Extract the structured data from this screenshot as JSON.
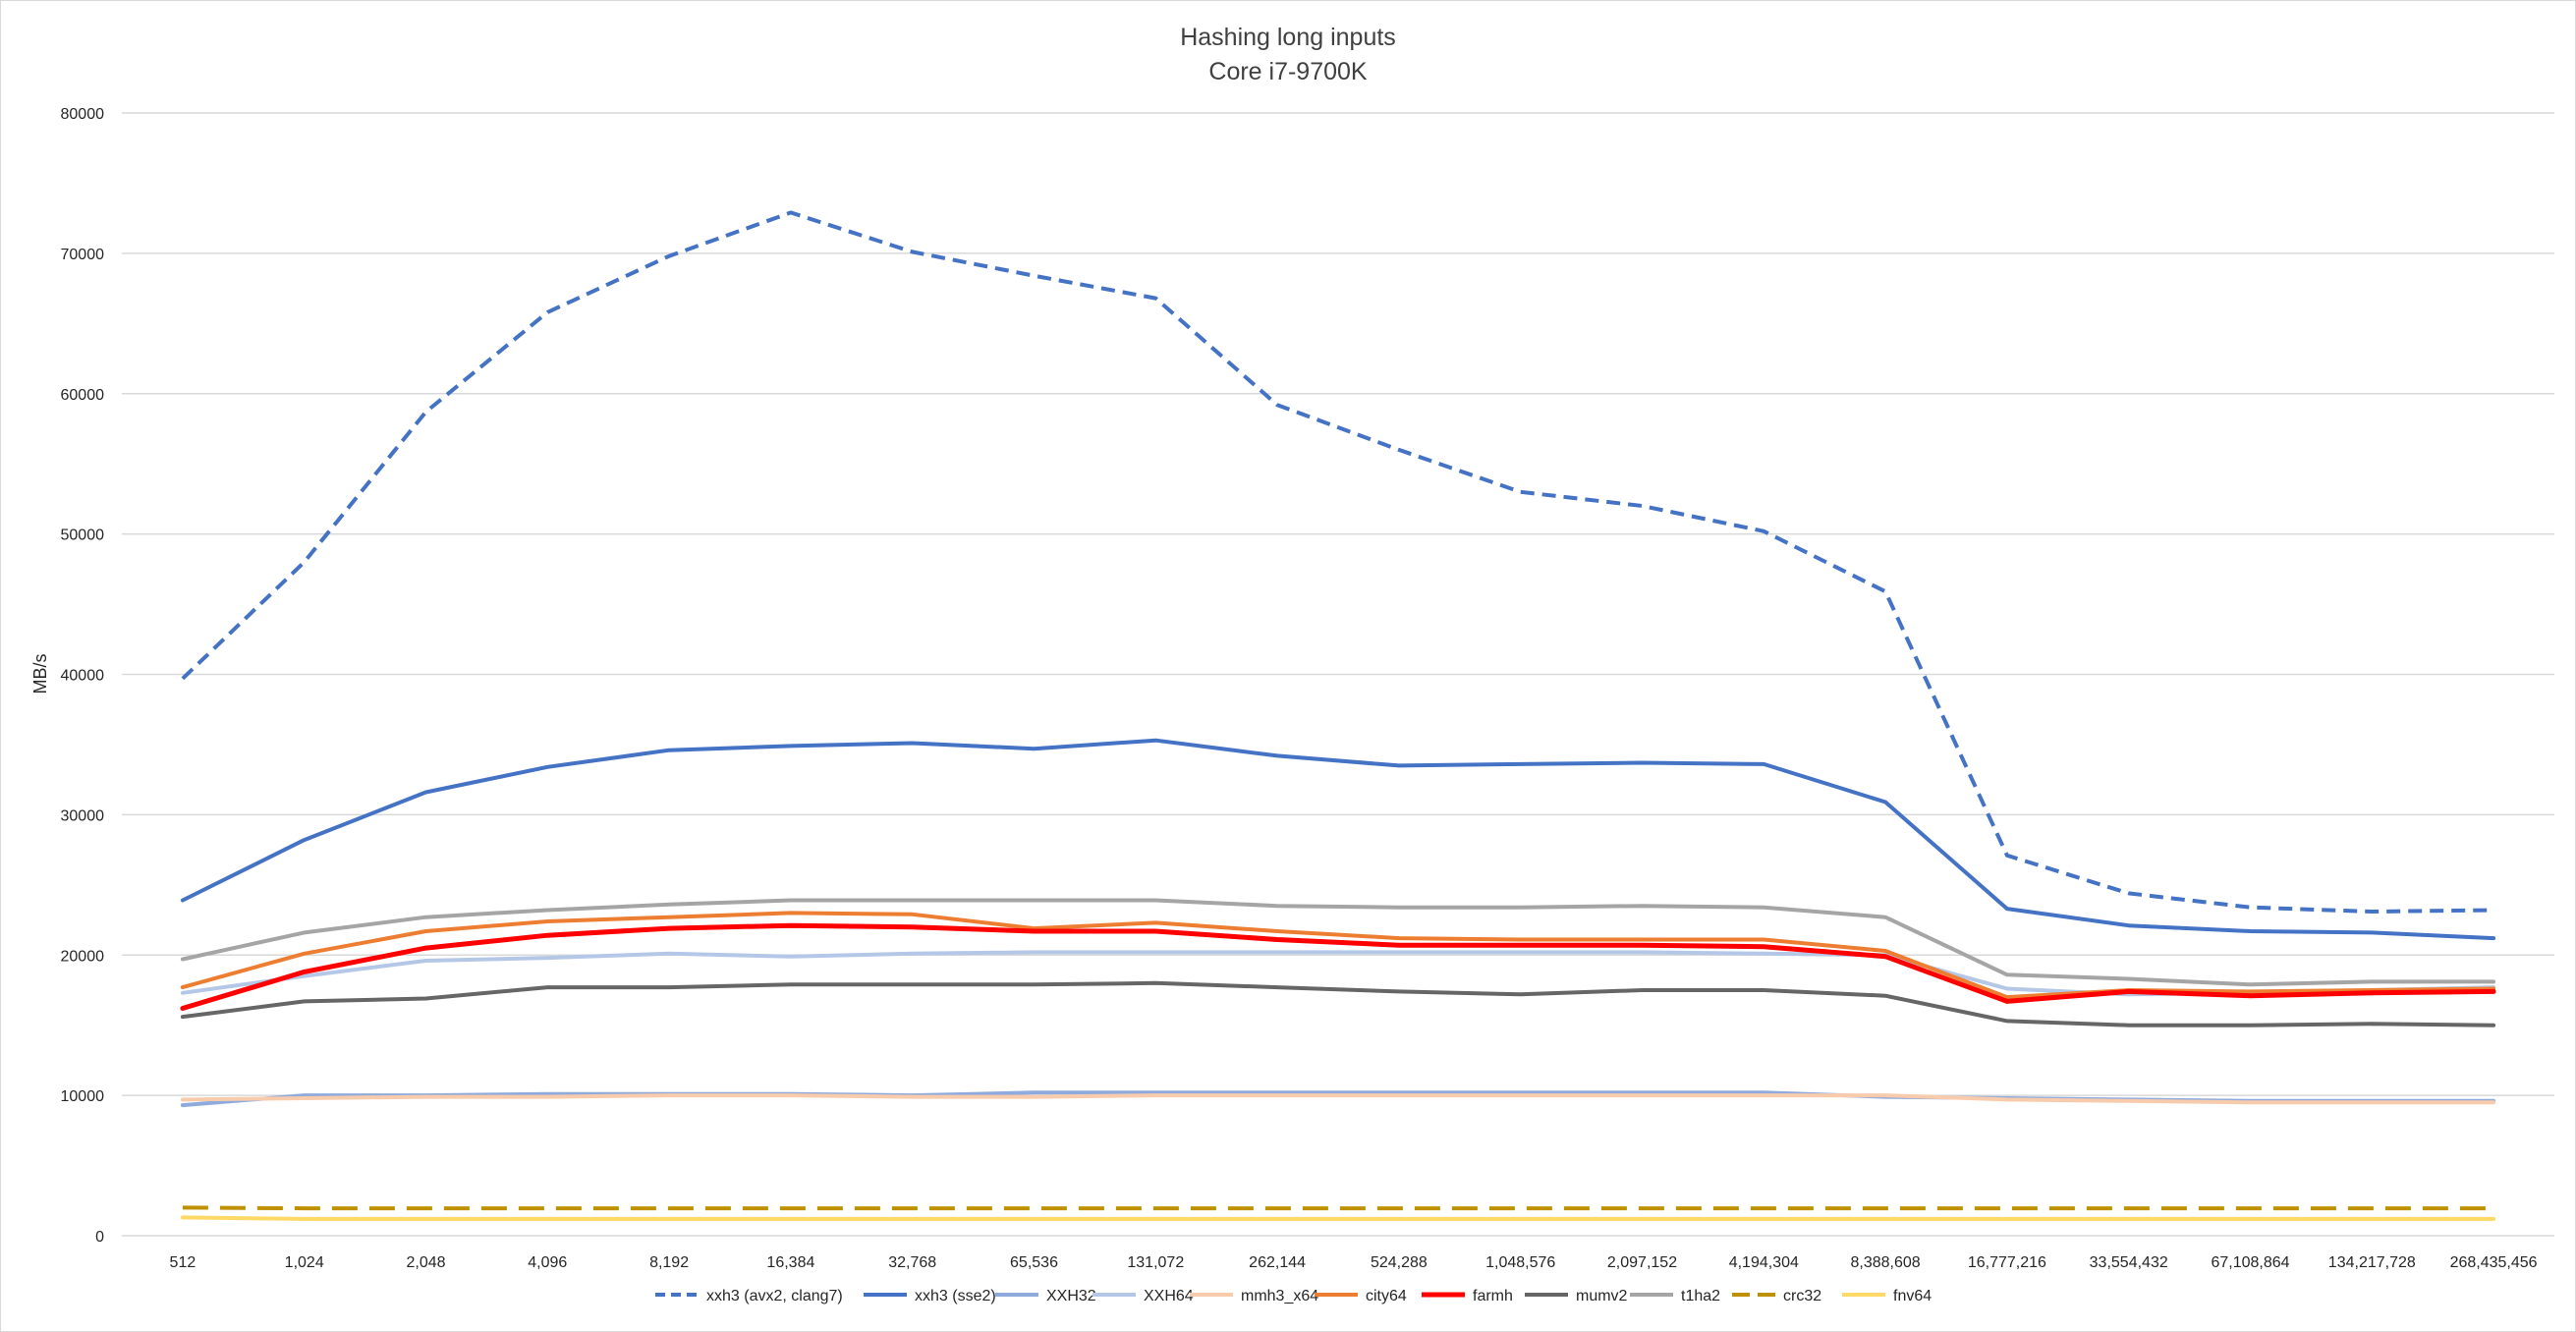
{
  "chart_data": {
    "type": "line",
    "title": "Hashing long inputs",
    "subtitle": "Core i7-9700K",
    "xlabel": "",
    "ylabel": "MB/s",
    "ylim": [
      0,
      80000
    ],
    "yticks": [
      "0",
      "10000",
      "20000",
      "30000",
      "40000",
      "50000",
      "60000",
      "70000",
      "80000"
    ],
    "grid": true,
    "legend_position": "bottom",
    "categories": [
      "512",
      "1,024",
      "2,048",
      "4,096",
      "8,192",
      "16,384",
      "32,768",
      "65,536",
      "131,072",
      "262,144",
      "524,288",
      "1,048,576",
      "2,097,152",
      "4,194,304",
      "8,388,608",
      "16,777,216",
      "33,554,432",
      "67,108,864",
      "134,217,728",
      "268,435,456"
    ],
    "series": [
      {
        "name": "xxh3 (avx2, clang7)",
        "color": "#4472c4",
        "dash": "dashed",
        "width": 4,
        "values": [
          39700,
          48000,
          58700,
          65800,
          69800,
          72900,
          70100,
          68400,
          66800,
          59200,
          56000,
          53000,
          52000,
          50200,
          45900,
          27100,
          24400,
          23400,
          23100,
          23200
        ]
      },
      {
        "name": "xxh3 (sse2)",
        "color": "#4472c4",
        "dash": "solid",
        "width": 4,
        "values": [
          23900,
          28200,
          31600,
          33400,
          34600,
          34900,
          35100,
          34700,
          35300,
          34200,
          33500,
          33600,
          33700,
          33600,
          30900,
          23300,
          22100,
          21700,
          21600,
          21200
        ]
      },
      {
        "name": "XXH32",
        "color": "#8faadc",
        "dash": "solid",
        "width": 4,
        "values": [
          9300,
          10000,
          10000,
          10100,
          10100,
          10100,
          10000,
          10200,
          10200,
          10200,
          10200,
          10200,
          10200,
          10200,
          9900,
          9800,
          9700,
          9600,
          9600,
          9600
        ]
      },
      {
        "name": "XXH64",
        "color": "#b4c7e7",
        "dash": "solid",
        "width": 4,
        "values": [
          17300,
          18500,
          19600,
          19800,
          20100,
          19900,
          20100,
          20200,
          20200,
          20200,
          20200,
          20200,
          20200,
          20100,
          20000,
          17600,
          17200,
          17300,
          17500,
          17700
        ]
      },
      {
        "name": "mmh3_x64",
        "color": "#f8cbad",
        "dash": "solid",
        "width": 4,
        "values": [
          9700,
          9800,
          9900,
          9900,
          10000,
          10000,
          9900,
          9900,
          10000,
          10000,
          10000,
          10000,
          10000,
          10000,
          10000,
          9700,
          9600,
          9500,
          9500,
          9500
        ]
      },
      {
        "name": "city64",
        "color": "#ed7d31",
        "dash": "solid",
        "width": 4,
        "values": [
          17700,
          20100,
          21700,
          22400,
          22700,
          23000,
          22900,
          21900,
          22300,
          21700,
          21200,
          21100,
          21100,
          21100,
          20300,
          17000,
          17500,
          17400,
          17500,
          17600
        ]
      },
      {
        "name": "farmh",
        "color": "#ff0000",
        "dash": "solid",
        "width": 5,
        "values": [
          16200,
          18800,
          20500,
          21400,
          21900,
          22100,
          22000,
          21700,
          21700,
          21100,
          20700,
          20700,
          20700,
          20600,
          19900,
          16700,
          17400,
          17100,
          17300,
          17400
        ]
      },
      {
        "name": "mumv2",
        "color": "#666666",
        "dash": "solid",
        "width": 4,
        "values": [
          15600,
          16700,
          16900,
          17700,
          17700,
          17900,
          17900,
          17900,
          18000,
          17700,
          17400,
          17200,
          17500,
          17500,
          17100,
          15300,
          15000,
          15000,
          15100,
          15000
        ]
      },
      {
        "name": "t1ha2",
        "color": "#a5a5a5",
        "dash": "solid",
        "width": 4,
        "values": [
          19700,
          21600,
          22700,
          23200,
          23600,
          23900,
          23900,
          23900,
          23900,
          23500,
          23400,
          23400,
          23500,
          23400,
          22700,
          18600,
          18300,
          17900,
          18100,
          18100
        ]
      },
      {
        "name": "crc32",
        "color": "#bf9000",
        "dash": "longdash",
        "width": 4,
        "values": [
          2000,
          1950,
          1950,
          1950,
          1950,
          1950,
          1950,
          1950,
          1950,
          1950,
          1950,
          1950,
          1950,
          1950,
          1950,
          1950,
          1950,
          1950,
          1950,
          1950
        ]
      },
      {
        "name": "fnv64",
        "color": "#ffd966",
        "dash": "solid",
        "width": 4,
        "values": [
          1300,
          1200,
          1200,
          1200,
          1200,
          1200,
          1200,
          1200,
          1200,
          1200,
          1200,
          1200,
          1200,
          1200,
          1200,
          1200,
          1200,
          1200,
          1200,
          1200
        ]
      }
    ]
  }
}
